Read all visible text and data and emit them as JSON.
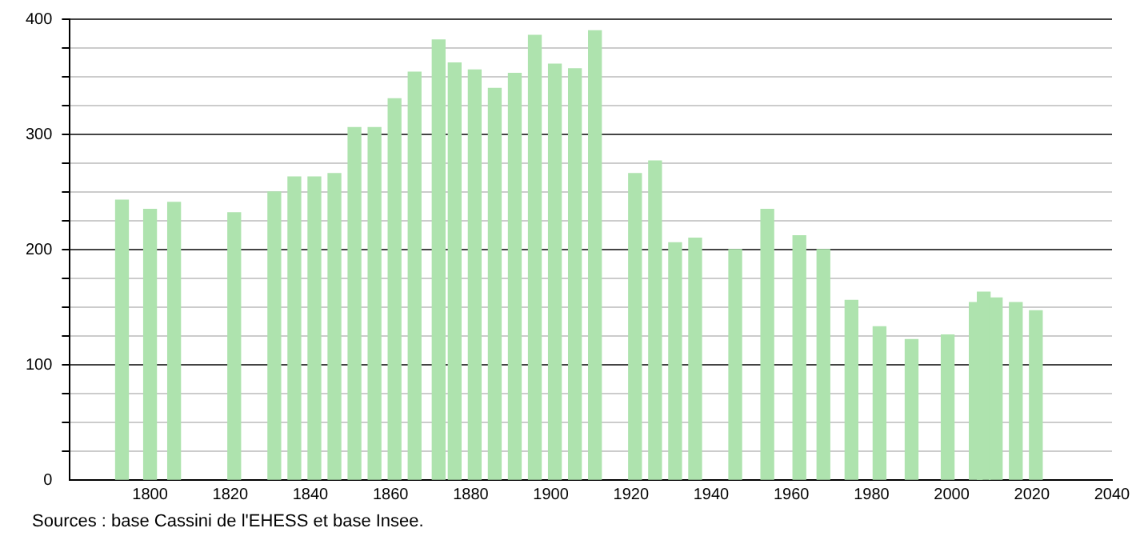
{
  "chart_data": {
    "type": "bar",
    "x": [
      1793,
      1800,
      1806,
      1821,
      1831,
      1836,
      1841,
      1846,
      1851,
      1856,
      1861,
      1866,
      1872,
      1876,
      1881,
      1886,
      1891,
      1896,
      1901,
      1906,
      1911,
      1921,
      1926,
      1931,
      1936,
      1946,
      1954,
      1962,
      1968,
      1975,
      1982,
      1990,
      1999,
      2006,
      2008,
      2011,
      2016,
      2021
    ],
    "values": [
      243,
      235,
      241,
      232,
      250,
      263,
      263,
      266,
      306,
      306,
      331,
      354,
      382,
      362,
      356,
      340,
      353,
      386,
      361,
      357,
      390,
      266,
      277,
      206,
      210,
      200,
      235,
      212,
      200,
      156,
      133,
      122,
      126,
      154,
      163,
      158,
      154,
      147
    ],
    "color": "#aee3ae",
    "xlim": [
      1780,
      2040
    ],
    "xticks": [
      1800,
      1820,
      1840,
      1860,
      1880,
      1900,
      1920,
      1940,
      1960,
      1980,
      2000,
      2020,
      2040
    ],
    "ylim": [
      0,
      400
    ],
    "yticks": [
      0,
      {
        "value": 25,
        "label": null
      },
      {
        "value": 50,
        "label": null
      },
      {
        "value": 75,
        "label": null
      },
      100,
      {
        "value": 125,
        "label": null
      },
      {
        "value": 150,
        "label": null
      },
      {
        "value": 175,
        "label": null
      },
      200,
      {
        "value": 225,
        "label": null
      },
      {
        "value": 250,
        "label": null
      },
      {
        "value": 275,
        "label": null
      },
      300,
      {
        "value": 325,
        "label": null
      },
      {
        "value": 350,
        "label": null
      },
      {
        "value": 375,
        "label": null
      },
      400
    ],
    "grid": "y",
    "legend": false,
    "annotations": [
      "Sources : base Cassini de l'EHESS et base Insee."
    ]
  }
}
